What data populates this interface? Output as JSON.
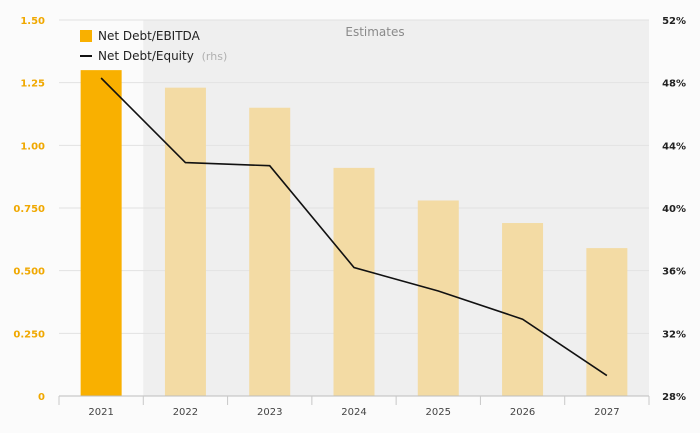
{
  "chart_data": {
    "type": "bar",
    "categories": [
      "2021",
      "2022",
      "2023",
      "2024",
      "2025",
      "2026",
      "2027"
    ],
    "series": [
      {
        "name": "Net Debt/EBITDA",
        "kind": "bar",
        "axis": "left",
        "values": [
          1.3,
          1.23,
          1.15,
          0.91,
          0.78,
          0.69,
          0.59
        ]
      },
      {
        "name": "Net Debt/Equity",
        "kind": "line",
        "axis": "right",
        "values": [
          48.3,
          42.9,
          42.7,
          36.2,
          34.7,
          32.9,
          29.3
        ]
      }
    ],
    "legend": {
      "entries": [
        {
          "label": "Net Debt/EBITDA",
          "suffix": ""
        },
        {
          "label": "Net Debt/Equity",
          "suffix": "(rhs)"
        }
      ],
      "position": "top-left"
    },
    "estimates_label": "Estimates",
    "y_left": {
      "range": [
        0,
        1.5
      ],
      "ticks": [
        "0",
        "0.250",
        "0.500",
        "0.750",
        "1.00",
        "1.25",
        "1.50"
      ]
    },
    "y_right": {
      "range": [
        28,
        52
      ],
      "unit": "%",
      "ticks": [
        "28%",
        "32%",
        "36%",
        "40%",
        "44%",
        "48%",
        "52%"
      ]
    },
    "grid": true,
    "colors": {
      "actual_bar": "#f9b000",
      "estimate_bar": "#f3dba4",
      "estimate_shade": "#efefef",
      "line": "#111111",
      "left_ticks": "#f0a800"
    }
  }
}
